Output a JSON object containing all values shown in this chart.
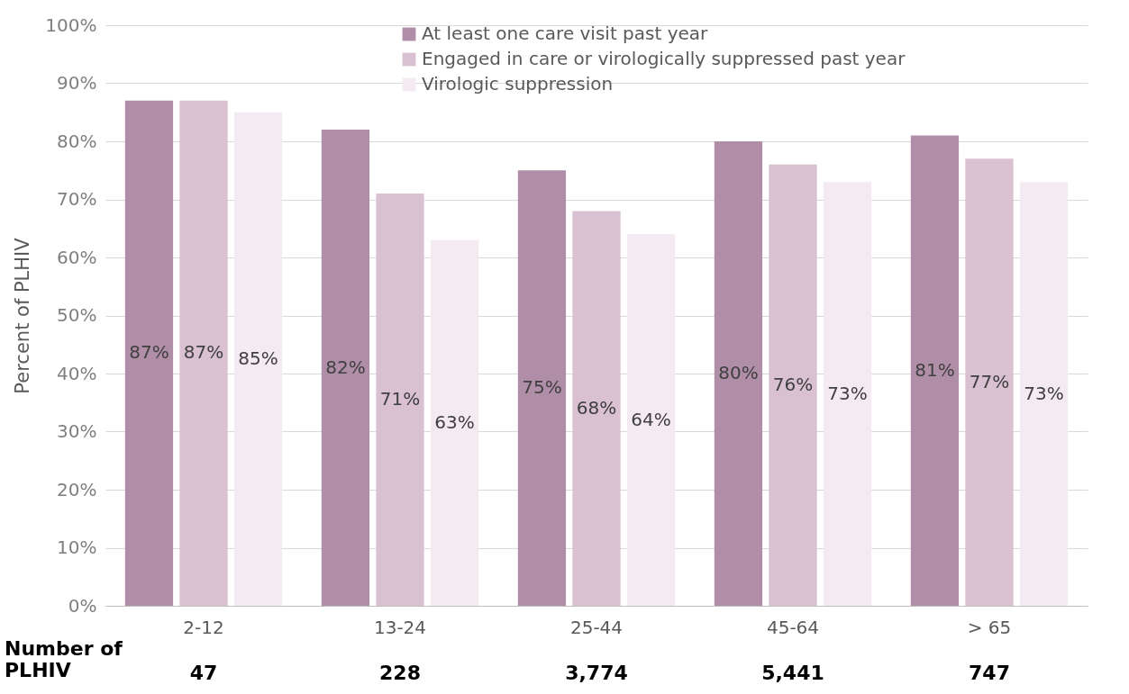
{
  "chart_data": {
    "type": "bar",
    "ylabel": "Percent of PLHIV",
    "categories": [
      "2-12",
      "13-24",
      "25-44",
      "45-64",
      "> 65"
    ],
    "series": [
      {
        "name": "At least one care visit past year",
        "color": "#b08ea8",
        "values": [
          87,
          82,
          75,
          80,
          81
        ],
        "value_labels": [
          "87%",
          "82%",
          "75%",
          "80%",
          "81%"
        ]
      },
      {
        "name": "Engaged in care or virologically suppressed past year",
        "color": "#d9c1d2",
        "values": [
          87,
          71,
          68,
          76,
          77
        ],
        "value_labels": [
          "87%",
          "71%",
          "68%",
          "76%",
          "77%"
        ]
      },
      {
        "name": "Virologic suppression",
        "color": "#f4eaf1",
        "values": [
          85,
          63,
          64,
          73,
          73
        ],
        "value_labels": [
          "85%",
          "63%",
          "64%",
          "73%",
          "73%"
        ]
      }
    ],
    "ylim": [
      0,
      100
    ],
    "yticks": [
      {
        "value": 0,
        "label": "0%"
      },
      {
        "value": 10,
        "label": "10%"
      },
      {
        "value": 20,
        "label": "20%"
      },
      {
        "value": 30,
        "label": "30%"
      },
      {
        "value": 40,
        "label": "40%"
      },
      {
        "value": 50,
        "label": "50%"
      },
      {
        "value": 60,
        "label": "60%"
      },
      {
        "value": 70,
        "label": "70%"
      },
      {
        "value": 80,
        "label": "80%"
      },
      {
        "value": 90,
        "label": "90%"
      },
      {
        "value": 100,
        "label": "100%"
      }
    ],
    "grid": "y",
    "legend": "top right",
    "annotations": [
      "Number of\nPLHIV",
      "47",
      "228",
      "3,774",
      "5,441",
      "747"
    ]
  }
}
